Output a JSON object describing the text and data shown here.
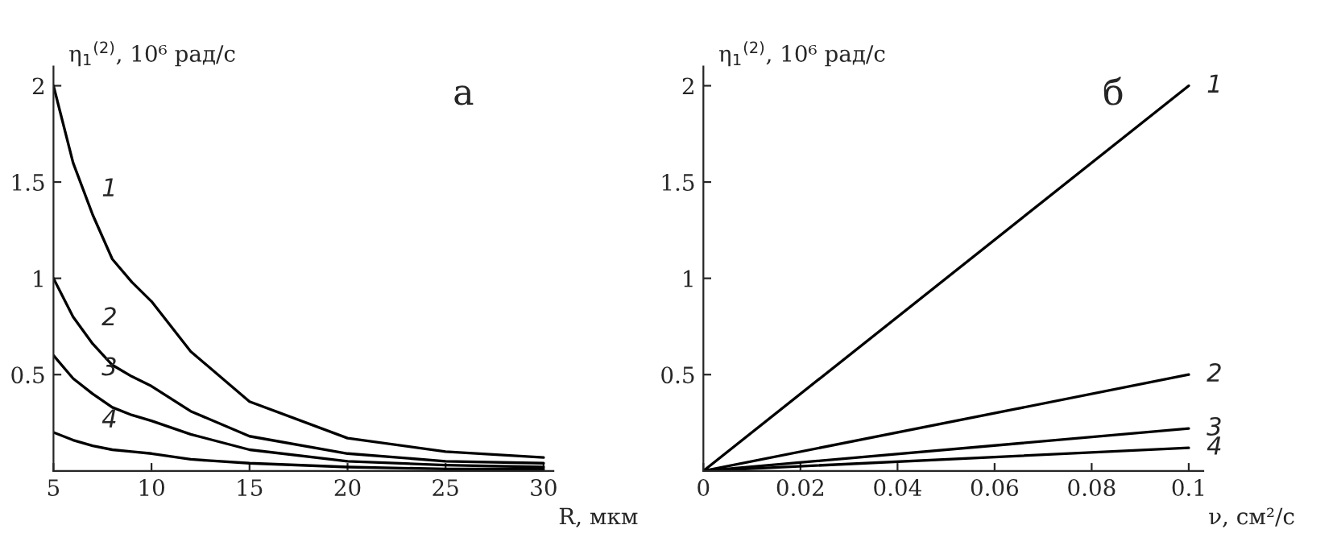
{
  "chart_data": [
    {
      "type": "line",
      "annotations": [
        "а"
      ],
      "xlabel": "R, мкм",
      "ylabel": "η$_{1}$$^{(2)}$, 10⁶ рад/с",
      "x": [
        5,
        6,
        7,
        8,
        9,
        10,
        12,
        15,
        20,
        25,
        30
      ],
      "series": [
        {
          "name": "1",
          "color": "#000000",
          "values": [
            2.0,
            1.6,
            1.33,
            1.1,
            0.98,
            0.88,
            0.62,
            0.36,
            0.17,
            0.1,
            0.07
          ]
        },
        {
          "name": "2",
          "color": "#000000",
          "values": [
            1.0,
            0.8,
            0.66,
            0.55,
            0.49,
            0.44,
            0.31,
            0.18,
            0.09,
            0.05,
            0.04
          ]
        },
        {
          "name": "3",
          "color": "#000000",
          "values": [
            0.6,
            0.48,
            0.4,
            0.33,
            0.29,
            0.26,
            0.19,
            0.11,
            0.05,
            0.03,
            0.02
          ]
        },
        {
          "name": "4",
          "color": "#000000",
          "values": [
            0.2,
            0.16,
            0.13,
            0.11,
            0.1,
            0.09,
            0.06,
            0.04,
            0.02,
            0.01,
            0.01
          ]
        }
      ],
      "xlim": [
        5,
        30.5
      ],
      "ylim": [
        0,
        2.1
      ],
      "xticks": [
        5,
        10,
        15,
        20,
        25,
        30
      ],
      "yticks": [
        0.5,
        1,
        1.5,
        2
      ],
      "grid": false,
      "legend": false,
      "marker": "none",
      "line_style": "solid"
    },
    {
      "type": "line",
      "annotations": [
        "б"
      ],
      "xlabel": "ν, см²/с",
      "ylabel": "η$_{1}$$^{(2)}$, 10⁶ рад/с",
      "x": [
        0,
        0.1
      ],
      "series": [
        {
          "name": "1",
          "color": "#000000",
          "values": [
            0,
            2.0
          ]
        },
        {
          "name": "2",
          "color": "#000000",
          "values": [
            0,
            0.5
          ]
        },
        {
          "name": "3",
          "color": "#000000",
          "values": [
            0,
            0.22
          ]
        },
        {
          "name": "4",
          "color": "#000000",
          "values": [
            0,
            0.12
          ]
        }
      ],
      "xlim": [
        0,
        0.103
      ],
      "ylim": [
        0,
        2.1
      ],
      "xticks": [
        0,
        0.02,
        0.04,
        0.06,
        0.08,
        0.1
      ],
      "yticks": [
        0.5,
        1,
        1.5,
        2
      ],
      "grid": false,
      "legend": false,
      "marker": "none",
      "line_style": "solid"
    }
  ]
}
